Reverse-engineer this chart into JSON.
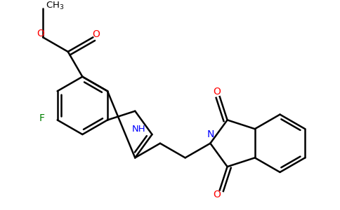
{
  "figsize": [
    4.84,
    3.0
  ],
  "dpi": 100,
  "bg": "#ffffff",
  "lw": 1.8,
  "bl": 0.42,
  "xlim": [
    0.0,
    4.84
  ],
  "ylim": [
    0.0,
    3.0
  ],
  "bond_color": "#000000",
  "O_color": "#ff0000",
  "N_color": "#0000ff",
  "F_color": "#008000",
  "C_color": "#000000"
}
